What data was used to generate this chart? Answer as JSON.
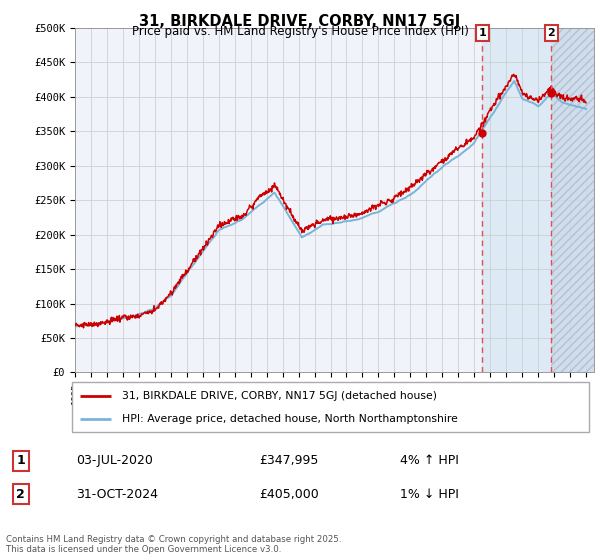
{
  "title_line1": "31, BIRKDALE DRIVE, CORBY, NN17 5GJ",
  "title_line2": "Price paid vs. HM Land Registry's House Price Index (HPI)",
  "hpi_color": "#7ab5d8",
  "price_color": "#cc0000",
  "highlight_color": "#ddeaf5",
  "dashed_line_color": "#e05050",
  "marker_color": "#cc0000",
  "grid_color": "#c8c8c8",
  "annotation1_date": "03-JUL-2020",
  "annotation1_price": "£347,995",
  "annotation1_pct": "4% ↑ HPI",
  "annotation2_date": "31-OCT-2024",
  "annotation2_price": "£405,000",
  "annotation2_pct": "1% ↓ HPI",
  "legend_line1": "31, BIRKDALE DRIVE, CORBY, NN17 5GJ (detached house)",
  "legend_line2": "HPI: Average price, detached house, North Northamptonshire",
  "footer": "Contains HM Land Registry data © Crown copyright and database right 2025.\nThis data is licensed under the Open Government Licence v3.0.",
  "ylim": [
    0,
    500000
  ],
  "event1_year": 2020.5,
  "event2_year": 2024.83,
  "yticks": [
    0,
    50000,
    100000,
    150000,
    200000,
    250000,
    300000,
    350000,
    400000,
    450000,
    500000
  ],
  "ytick_labels": [
    "£0",
    "£50K",
    "£100K",
    "£150K",
    "£200K",
    "£250K",
    "£300K",
    "£350K",
    "£400K",
    "£450K",
    "£500K"
  ]
}
